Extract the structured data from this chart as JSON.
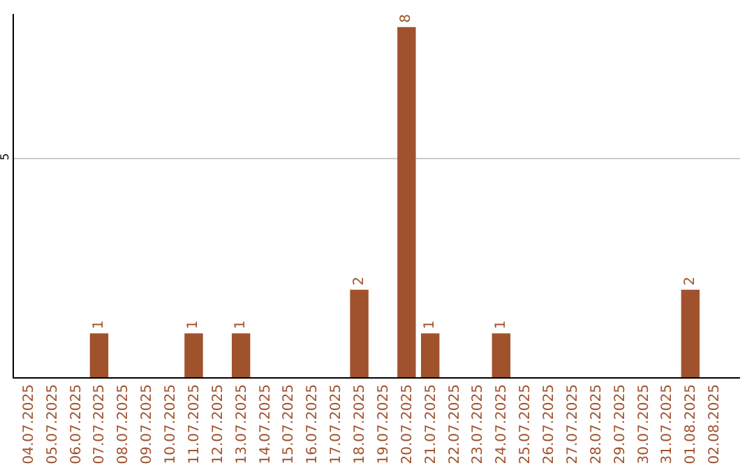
{
  "chart_data": {
    "type": "bar",
    "categories": [
      "04.07.2025",
      "05.07.2025",
      "06.07.2025",
      "07.07.2025",
      "08.07.2025",
      "09.07.2025",
      "10.07.2025",
      "11.07.2025",
      "12.07.2025",
      "13.07.2025",
      "14.07.2025",
      "15.07.2025",
      "16.07.2025",
      "17.07.2025",
      "18.07.2025",
      "19.07.2025",
      "20.07.2025",
      "21.07.2025",
      "22.07.2025",
      "23.07.2025",
      "24.07.2025",
      "25.07.2025",
      "26.07.2025",
      "27.07.2025",
      "28.07.2025",
      "29.07.2025",
      "30.07.2025",
      "31.07.2025",
      "01.08.2025",
      "02.08.2025"
    ],
    "values": [
      0,
      0,
      0,
      1,
      0,
      0,
      0,
      1,
      0,
      1,
      0,
      0,
      0,
      0,
      2,
      0,
      8,
      1,
      0,
      0,
      1,
      0,
      0,
      0,
      0,
      0,
      0,
      0,
      2,
      0
    ],
    "value_labels": [
      null,
      null,
      null,
      "1",
      null,
      null,
      null,
      "1",
      null,
      "1",
      null,
      null,
      null,
      null,
      "2",
      null,
      "8",
      "1",
      null,
      null,
      "1",
      null,
      null,
      null,
      null,
      null,
      null,
      null,
      "2",
      null
    ],
    "color": "#a0522d",
    "ylim": [
      0,
      8.3
    ],
    "yticks": [
      5
    ],
    "grid": "y"
  }
}
